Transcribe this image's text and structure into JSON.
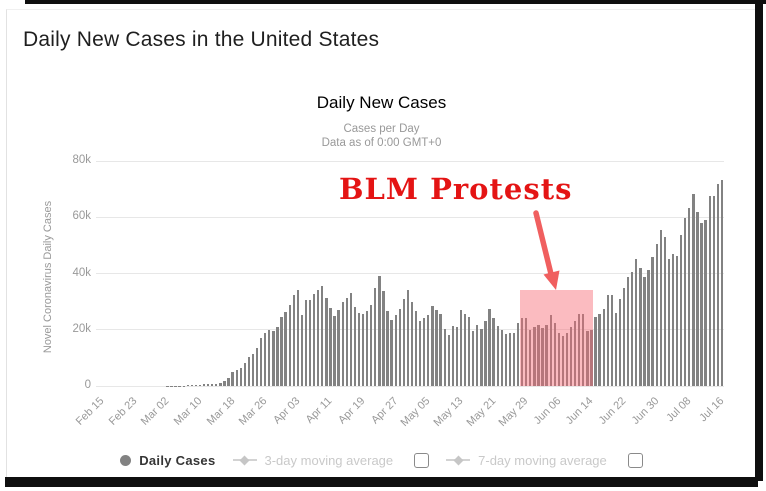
{
  "page": {
    "title": "Daily New Cases in the United States"
  },
  "chart": {
    "title": "Daily New Cases",
    "subtitle_line1": "Cases per Day",
    "subtitle_line2": "Data as of 0:00 GMT+0",
    "y_axis_label": "Novel Coronavirus Daily Cases"
  },
  "annotation": {
    "label": "BLM Protests"
  },
  "legend": {
    "daily_cases_label": "Daily Cases",
    "avg3_label": "3-day moving average",
    "avg7_label": "7-day moving average",
    "avg3_checked": false,
    "avg7_checked": false
  },
  "colors": {
    "bar": "#828282",
    "grid": "#e7e7e7",
    "axis_text": "#999999",
    "annotation_red": "#e41414",
    "arrow_red": "#f05f5f",
    "highlight_pink": "#f66874",
    "highlight_opacity": 0.45,
    "frame_black": "#0f0f0f"
  },
  "chart_data": {
    "type": "bar",
    "title": "Daily New Cases",
    "subtitle": [
      "Cases per Day",
      "Data as of 0:00 GMT+0"
    ],
    "ylabel": "Novel Coronavirus Daily Cases",
    "ylim": [
      0,
      80000
    ],
    "y_tick_values": [
      0,
      20000,
      40000,
      60000,
      80000
    ],
    "y_tick_labels": [
      "0",
      "20k",
      "40k",
      "60k",
      "80k"
    ],
    "x_tick_labels": [
      "Feb 15",
      "Feb 23",
      "Mar 02",
      "Mar 10",
      "Mar 18",
      "Mar 26",
      "Apr 03",
      "Apr 11",
      "Apr 19",
      "Apr 27",
      "May 05",
      "May 13",
      "May 21",
      "May 29",
      "Jun 06",
      "Jun 14",
      "Jun 22",
      "Jun 30",
      "Jul 08",
      "Jul 16"
    ],
    "x_tick_step_bars": 8,
    "grid": true,
    "legend_entries": [
      "Daily Cases",
      "3-day moving average",
      "7-day moving average"
    ],
    "series_name": "Daily Cases",
    "values": [
      1,
      0,
      2,
      1,
      0,
      1,
      19,
      0,
      0,
      1,
      2,
      6,
      3,
      5,
      7,
      24,
      21,
      31,
      31,
      73,
      101,
      121,
      198,
      277,
      290,
      399,
      540,
      664,
      788,
      723,
      1120,
      1766,
      2988,
      4835,
      5632,
      6352,
      8260,
      10410,
      11236,
      13355,
      17224,
      18691,
      19979,
      19408,
      20921,
      24445,
      26365,
      28819,
      32425,
      34272,
      25316,
      30561,
      30613,
      32829,
      34058,
      35527,
      31270,
      27620,
      25023,
      26922,
      30003,
      31451,
      32922,
      28123,
      26071,
      25509,
      26513,
      28680,
      34920,
      38958,
      33955,
      26509,
      23366,
      25194,
      27327,
      30833,
      34041,
      29744,
      26638,
      23196,
      24128,
      25253,
      28369,
      26906,
      25612,
      20329,
      18117,
      21467,
      20869,
      27143,
      25508,
      24487,
      19731,
      21841,
      20289,
      23285,
      27302,
      24147,
      21236,
      20063,
      18439,
      18873,
      18721,
      22577,
      24266,
      24146,
      20007,
      21161,
      21740,
      20492,
      21697,
      25075,
      22553,
      18934,
      17695,
      18822,
      21122,
      23017,
      25624,
      25540,
      19420,
      19819,
      24416,
      25555,
      27260,
      32217,
      32411,
      25966,
      31087,
      34720,
      38672,
      40526,
      45255,
      42046,
      38800,
      41075,
      46042,
      50655,
      55442,
      53051,
      45300,
      47111,
      46329,
      53570,
      59629,
      63247,
      68428,
      61719,
      58114,
      58858,
      67417,
      67600,
      71787,
      73388
    ],
    "highlight": {
      "label": "BLM Protests",
      "start_index": 104,
      "end_index": 121,
      "start_tick": "May 29",
      "top_value": 34000
    }
  }
}
